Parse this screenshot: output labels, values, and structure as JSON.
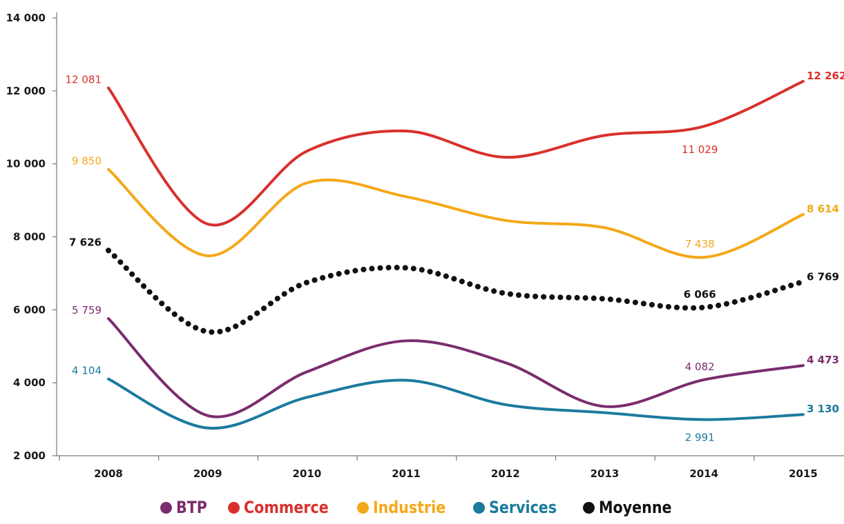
{
  "chart_data": {
    "type": "line",
    "x": [
      "2008",
      "2009",
      "2010",
      "2011",
      "2012",
      "2013",
      "2014",
      "2015"
    ],
    "y_ticks": [
      "2 000",
      "4 000",
      "6 000",
      "8 000",
      "10 000",
      "12 000",
      "14 000"
    ],
    "ylim": [
      2000,
      14000
    ],
    "grid": false,
    "legend_position": "bottom",
    "series": [
      {
        "name": "BTP",
        "color": "#7b2c6e",
        "style": "solid",
        "values": [
          5759,
          3100,
          4300,
          5150,
          4550,
          3350,
          4082,
          4473
        ],
        "labels": [
          {
            "index": 0,
            "text": "5 759",
            "bold": false
          },
          {
            "index": 6,
            "text": "4 082",
            "bold": false
          },
          {
            "index": 7,
            "text": "4 473",
            "bold": true
          }
        ]
      },
      {
        "name": "Commerce",
        "color": "#d9302c",
        "style": "solid",
        "values": [
          12081,
          8350,
          10350,
          10900,
          10180,
          10780,
          11029,
          12262
        ],
        "labels": [
          {
            "index": 0,
            "text": "12 081",
            "bold": false
          },
          {
            "index": 6,
            "text": "11 029",
            "bold": false
          },
          {
            "index": 7,
            "text": "12 262",
            "bold": true
          }
        ]
      },
      {
        "name": "Industrie",
        "color": "#f5a818",
        "style": "solid",
        "values": [
          9850,
          7480,
          9480,
          9100,
          8450,
          8250,
          7438,
          8614
        ],
        "labels": [
          {
            "index": 0,
            "text": "9 850",
            "bold": false
          },
          {
            "index": 6,
            "text": "7 438",
            "bold": false
          },
          {
            "index": 7,
            "text": "8 614",
            "bold": true
          }
        ]
      },
      {
        "name": "Services",
        "color": "#1b7a9e",
        "style": "solid",
        "values": [
          4104,
          2760,
          3600,
          4070,
          3400,
          3180,
          2991,
          3130
        ],
        "labels": [
          {
            "index": 0,
            "text": "4 104",
            "bold": false
          },
          {
            "index": 6,
            "text": "2 991",
            "bold": false
          },
          {
            "index": 7,
            "text": "3 130",
            "bold": true
          }
        ]
      },
      {
        "name": "Moyenne",
        "color": "#111111",
        "style": "dotted",
        "values": [
          7626,
          5400,
          6750,
          7150,
          6450,
          6300,
          6066,
          6769
        ],
        "labels": [
          {
            "index": 0,
            "text": "7 626",
            "bold": true
          },
          {
            "index": 6,
            "text": "6 066",
            "bold": true
          },
          {
            "index": 7,
            "text": "6 769",
            "bold": true
          }
        ]
      }
    ]
  }
}
